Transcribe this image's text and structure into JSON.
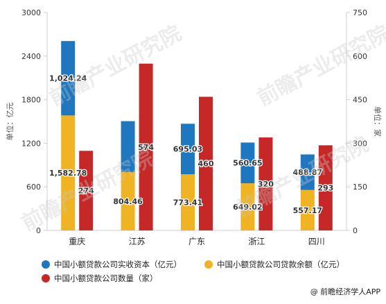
{
  "chart_data": {
    "type": "bar",
    "categories": [
      "重庆",
      "江苏",
      "广东",
      "浙江",
      "四川"
    ],
    "series": [
      {
        "name": "中国小额贷款公司实收资本（亿元）",
        "axis": "left",
        "stack": "capital",
        "values": [
          1024.24,
          700.0,
          695.03,
          560.65,
          488.87
        ],
        "label": [
          true,
          false,
          true,
          true,
          true
        ],
        "color": "#1f77c0"
      },
      {
        "name": "中国小额贷款公司贷款余额（亿元）",
        "axis": "left",
        "stack": "capital",
        "values": [
          1582.78,
          804.46,
          773.41,
          649.02,
          557.17
        ],
        "label": [
          true,
          true,
          true,
          true,
          true
        ],
        "color": "#f0b323"
      },
      {
        "name": "中国小额贷款公司数量（家）",
        "axis": "right",
        "stack": "count",
        "values": [
          274,
          574,
          460,
          320,
          293
        ],
        "label": [
          true,
          true,
          true,
          true,
          true
        ],
        "color": "#c62828"
      }
    ],
    "ylabel": "单位：亿元",
    "ylim": [
      0,
      3000
    ],
    "yticks": [
      "0",
      "600",
      "1200",
      "1800",
      "2400",
      "3000"
    ],
    "y2label": "单位：家",
    "y2lim": [
      0,
      750
    ],
    "y2ticks": [
      "0",
      "150",
      "300",
      "450",
      "600",
      "750"
    ],
    "grid": false,
    "legend_position": "bottom"
  },
  "watermark": {
    "logo_text": "前瞻产业研究院"
  },
  "source": {
    "icon": "at-icon",
    "text": "@ 前瞻经济学人APP"
  }
}
